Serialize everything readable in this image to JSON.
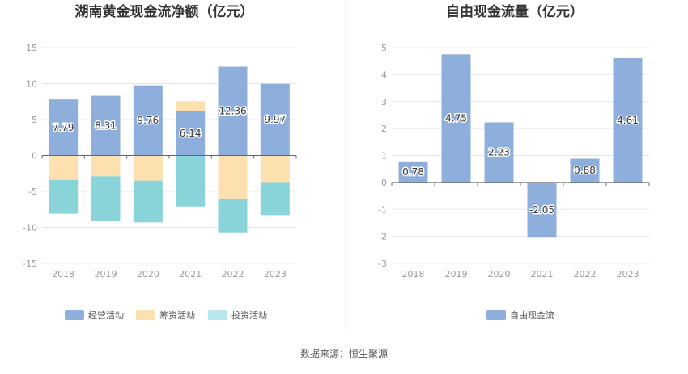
{
  "source_note": "数据来源：恒生聚源",
  "colors": {
    "operating": "#8eafdc",
    "financing": "#fde0b0",
    "investing": "#88d4d8",
    "investing_legend": "#b8e8ec",
    "fcf": "#8eafdc",
    "grid": "#e6e6e6",
    "axis": "#666666"
  },
  "chart_data": [
    {
      "type": "bar",
      "stacked": true,
      "title": "湖南黄金现金流净额（亿元）",
      "categories": [
        "2018",
        "2019",
        "2020",
        "2021",
        "2022",
        "2023"
      ],
      "ylim": [
        -15,
        15
      ],
      "yticks": [
        15,
        10,
        5,
        0,
        -5,
        -10,
        -15
      ],
      "grid": true,
      "legend_position": "bottom",
      "series": [
        {
          "name": "经营活动",
          "values": [
            7.79,
            8.31,
            9.76,
            6.14,
            12.36,
            9.97
          ],
          "labels": [
            "7.79",
            "8.31",
            "9.76",
            "6.14",
            "12.36",
            "9.97"
          ]
        },
        {
          "name": "筹资活动",
          "values": [
            -3.4,
            -2.9,
            -3.5,
            1.4,
            -6.0,
            -3.7
          ]
        },
        {
          "name": "投资活动",
          "values": [
            -4.7,
            -6.2,
            -5.8,
            -7.1,
            -4.7,
            -4.6
          ]
        }
      ]
    },
    {
      "type": "bar",
      "title": "自由现金流量（亿元）",
      "categories": [
        "2018",
        "2019",
        "2020",
        "2021",
        "2022",
        "2023"
      ],
      "ylim": [
        -3,
        5
      ],
      "yticks": [
        5,
        4,
        3,
        2,
        1,
        0,
        -1,
        -2,
        -3
      ],
      "grid": true,
      "legend_position": "bottom",
      "series": [
        {
          "name": "自由现金流",
          "values": [
            0.78,
            4.75,
            2.23,
            -2.05,
            0.88,
            4.61
          ],
          "labels": [
            "0.78",
            "4.75",
            "2.23",
            "-2.05",
            "0.88",
            "4.61"
          ]
        }
      ]
    }
  ]
}
